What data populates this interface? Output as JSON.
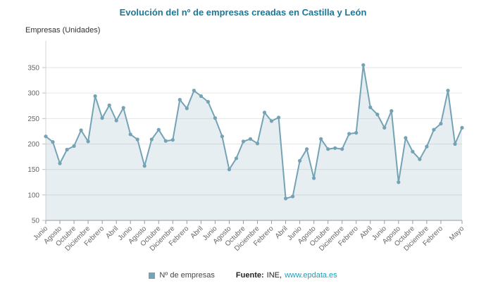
{
  "title": "Evolución del nº de empresas creadas en Castilla y León",
  "y_axis_title": "Empresas (Unidades)",
  "legend": {
    "label": "Nº de empresas"
  },
  "source": {
    "prefix": "Fuente:",
    "name": "INE,",
    "link": "www.epdata.es"
  },
  "colors": {
    "line": "#74a3b5",
    "area": "rgba(116,163,181,0.18)",
    "title": "#1a7897",
    "link": "#18a2b8",
    "grid": "#e6e6e6",
    "axis_line": "#9a9a9a",
    "axis_text": "#666666"
  },
  "chart_data": {
    "type": "line",
    "title": "Evolución del nº de empresas creadas en Castilla y León",
    "ylabel": "Empresas (Unidades)",
    "xlabel": "",
    "series_name": "Nº de empresas",
    "ylim": [
      50,
      370
    ],
    "y_ticks": [
      50,
      100,
      150,
      200,
      250,
      300,
      350
    ],
    "grid": true,
    "legend_position": "bottom",
    "x_labels": [
      "Junio",
      "Agosto",
      "Octubre",
      "Diciembre",
      "Febrero",
      "Abril",
      "Junio",
      "Agosto",
      "Octubre",
      "Diciembre",
      "Febrero",
      "Abril",
      "Junio",
      "Agosto",
      "Octubre",
      "Diciembre",
      "Febrero",
      "Abril",
      "Junio",
      "Agosto",
      "Octubre",
      "Diciembre",
      "Febrero",
      "Abril",
      "Junio",
      "Agosto",
      "Octubre",
      "Diciembre",
      "Febrero",
      "Mayo"
    ],
    "label_positions": [
      0,
      2,
      4,
      6,
      8,
      10,
      12,
      14,
      16,
      18,
      20,
      22,
      24,
      26,
      28,
      30,
      32,
      34,
      36,
      38,
      40,
      42,
      44,
      46,
      48,
      50,
      52,
      54,
      56,
      59
    ],
    "values": [
      215,
      204,
      162,
      189,
      196,
      227,
      205,
      294,
      251,
      276,
      246,
      271,
      219,
      209,
      157,
      209,
      228,
      206,
      208,
      287,
      270,
      305,
      294,
      283,
      251,
      215,
      150,
      172,
      205,
      210,
      201,
      262,
      245,
      252,
      93,
      97,
      167,
      190,
      133,
      210,
      190,
      192,
      190,
      220,
      222,
      355,
      272,
      258,
      232,
      265,
      125,
      212,
      185,
      170,
      195,
      228,
      240,
      305,
      200,
      232
    ]
  }
}
